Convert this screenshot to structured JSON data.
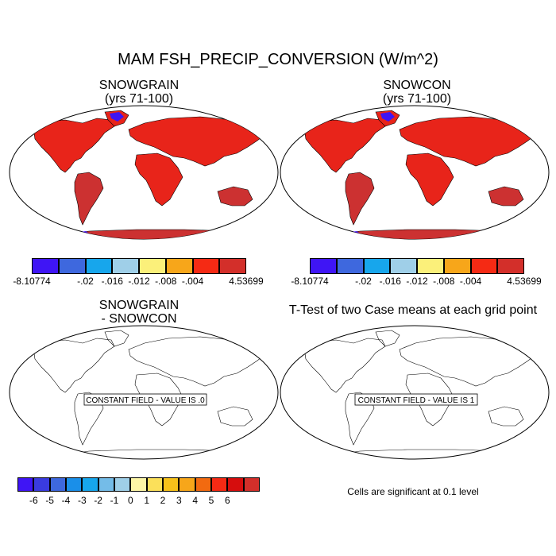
{
  "figure": {
    "title": "MAM FSH_PRECIP_CONVERSION (W/m^2)"
  },
  "panels": [
    {
      "title_line1": "SNOWGRAIN",
      "title_line2": "(yrs 71-100)",
      "fill": "red",
      "note": ""
    },
    {
      "title_line1": "SNOWCON",
      "title_line2": "(yrs 71-100)",
      "fill": "red",
      "note": ""
    },
    {
      "title_line1": "SNOWGRAIN",
      "title_line2": "- SNOWCON",
      "fill": "none",
      "note": "CONSTANT FIELD - VALUE IS .0"
    },
    {
      "title_line1": "T-Test of two Case means at each grid point",
      "title_line2": "",
      "fill": "none",
      "note": "CONSTANT FIELD - VALUE IS 1"
    }
  ],
  "colorbars": {
    "case": {
      "colors": [
        "#3f15f5",
        "#3e68de",
        "#17a6ec",
        "#9fcfe8",
        "#fbf07a",
        "#f7a61a",
        "#f52a14",
        "#d32f2a"
      ],
      "labels": [
        "-8.10774",
        "-.02",
        "-.016",
        "-.012",
        "-.008",
        "-.004",
        "4.53699"
      ]
    },
    "diff": {
      "colors": [
        "#3f15f5",
        "#3a3bdf",
        "#3e68de",
        "#1a8fe9",
        "#17a6ec",
        "#74bce8",
        "#9fcfe8",
        "#fdf6a7",
        "#fbe05a",
        "#f7c21a",
        "#f7a61a",
        "#f26a10",
        "#f52a14",
        "#d60d0d",
        "#d32f2a"
      ],
      "labels": [
        "-6",
        "-5",
        "-4",
        "-3",
        "-2",
        "-1",
        "0",
        "1",
        "2",
        "3",
        "4",
        "5",
        "6"
      ]
    }
  },
  "significance_note": "Cells are significant at 0.1 level",
  "colors": {
    "land_red": "#e8241a",
    "land_dark": "#cc3131",
    "ice_blue": "#3f15f5"
  }
}
